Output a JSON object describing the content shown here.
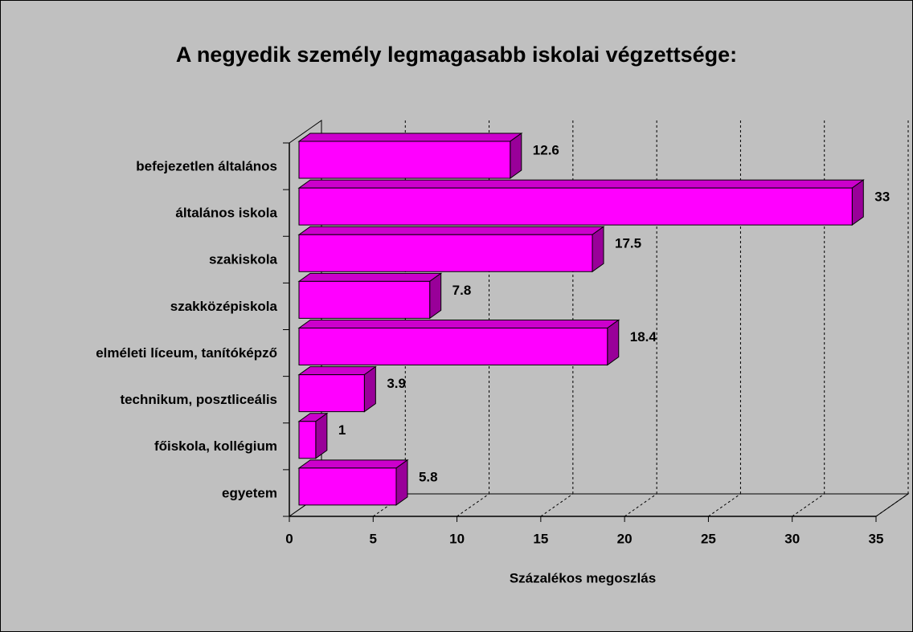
{
  "chart_data": {
    "type": "bar",
    "orientation": "horizontal",
    "three_d": true,
    "title": "A negyedik személy legmagasabb iskolai végzettsége:",
    "x_label": "Százalékos megoszlás",
    "categories": [
      "befejezetlen általános",
      "általános iskola",
      "szakiskola",
      "szakközépiskola",
      "elméleti líceum, tanítóképző",
      "technikum, posztliceális",
      "főiskola, kollégium",
      "egyetem"
    ],
    "values": [
      12.6,
      33,
      17.5,
      7.8,
      18.4,
      3.9,
      1,
      5.8
    ],
    "color": "#ff00ff",
    "xlim": [
      0,
      35
    ],
    "xticks": [
      0,
      5,
      10,
      15,
      20,
      25,
      30,
      35
    ],
    "grid": true
  }
}
